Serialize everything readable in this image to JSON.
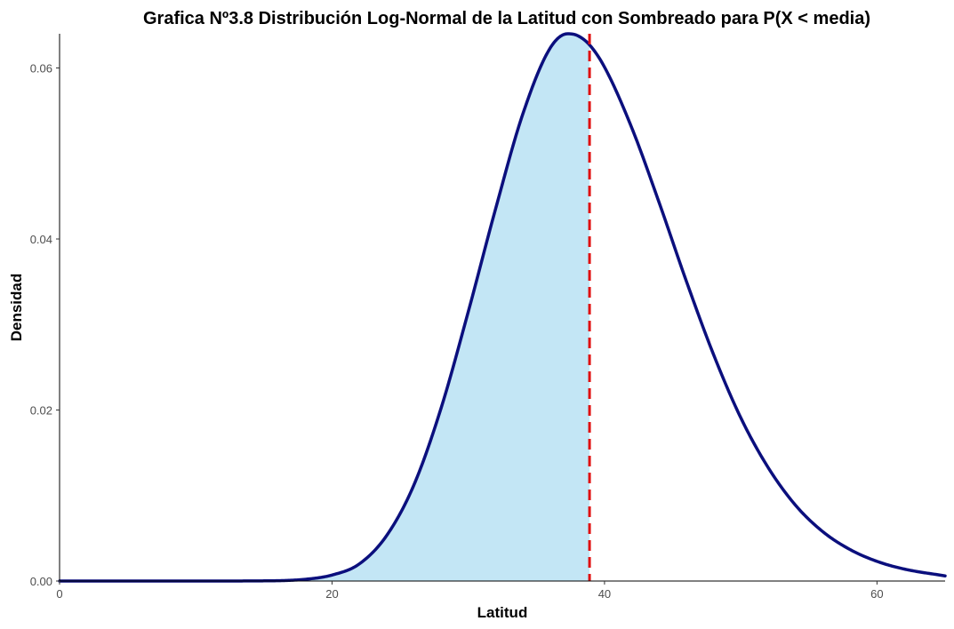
{
  "chart_data": {
    "type": "area",
    "title": "Grafica Nº3.8 Distribución Log-Normal de la Latitud con Sombreado para P(X < media)",
    "xlabel": "Latitud",
    "ylabel": "Densidad",
    "xlim": [
      0,
      65
    ],
    "ylim": [
      0,
      0.064
    ],
    "x_ticks": [
      0,
      20,
      40,
      60
    ],
    "y_ticks": [
      0.0,
      0.02,
      0.04,
      0.06
    ],
    "x_tick_labels": [
      "0",
      "20",
      "40",
      "60"
    ],
    "y_tick_labels": [
      "0.00",
      "0.02",
      "0.04",
      "0.06"
    ],
    "mean": 38.9,
    "series": [
      {
        "x": [
          0,
          10,
          15,
          18,
          20,
          22,
          24,
          26,
          28,
          30,
          32,
          34,
          36,
          37.3,
          38,
          38.9,
          40,
          42,
          44,
          46,
          48,
          50,
          52,
          54,
          56,
          58,
          60,
          62,
          65
        ],
        "y": [
          0,
          0,
          2e-05,
          0.0002,
          0.0007,
          0.002,
          0.0053,
          0.0112,
          0.0202,
          0.0315,
          0.0435,
          0.0546,
          0.0623,
          0.064,
          0.0638,
          0.0627,
          0.0601,
          0.053,
          0.0443,
          0.0351,
          0.0265,
          0.0191,
          0.0133,
          0.0089,
          0.0058,
          0.0037,
          0.0023,
          0.0014,
          0.0006
        ]
      }
    ],
    "colors": {
      "curve": "#0b0f7d",
      "fill": "#c3e6f5",
      "mean_line": "#e01010"
    },
    "grid": false
  }
}
